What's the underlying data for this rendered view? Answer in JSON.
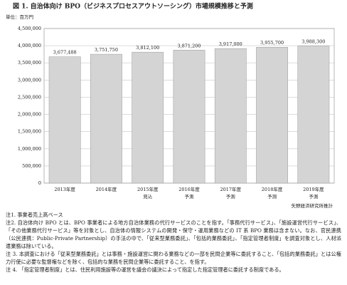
{
  "chart_data": {
    "type": "bar",
    "title": "図 1. 自治体向け BPO（ビジネスプロセスアウトソーシング）市場規模推移と予測",
    "unit_label": "単位：百万円",
    "categories": [
      "2013年度",
      "2014年度",
      "2015年度",
      "2016年度",
      "2017年度",
      "2018年度",
      "2019年度"
    ],
    "category_sublabels": [
      null,
      null,
      "見込",
      "予測",
      "予測",
      "予測",
      "予測"
    ],
    "values": [
      3677488,
      3751750,
      3812100,
      3871200,
      3917000,
      3955700,
      3988300
    ],
    "value_labels": [
      "3,677,488",
      "3,751,750",
      "3,812,100",
      "3,871,200",
      "3,917,000",
      "3,955,700",
      "3,988,300"
    ],
    "color": "#d4d4d4",
    "ylim": [
      0,
      4500000
    ],
    "yticks": [
      0,
      {
        "value": 500000,
        "label": "500,000"
      },
      {
        "value": 1000000,
        "label": "1,000,000"
      },
      {
        "value": 1500000,
        "label": "1,500,000"
      },
      {
        "value": 2000000,
        "label": "2,000,000"
      },
      {
        "value": 2500000,
        "label": "2,500,000"
      },
      {
        "value": 3000000,
        "label": "3,000,000"
      },
      {
        "value": 3500000,
        "label": "3,500,000"
      },
      {
        "value": 4000000,
        "label": "4,000,000"
      },
      {
        "value": 4500000,
        "label": "4,500,000"
      }
    ],
    "grid": true,
    "source": "矢野経済研究所推計"
  },
  "notes": [
    "注1. 事業者売上高ベース",
    "注2. 自治体向け BPO とは、BPO 事業者による地方自治体業務の代行サービスのことを指す。「事務代行サービス」、「施設運営代行サービス」、「その他業務代行サービス」等を対象とし、自治体の情報システムの開発・保守・運用業務などの IT 系 BPO 業務は含まない。なお、官民連携（公民連携：Public-Private Partnership）の手法の中で、「従来型業務委託」、「包括的業務委託」、「指定管理者制度」を調査対象とし、人材派遣業務は除いている。",
    "注 3. 本調査における「従来型業務委託」とは事務・施設運営に関わる業務などの一部を民間企業等に委託すること、「包括的業務委託」とは公権力行使に必要な監督権などを除く、包括的な業務を民間企業等に委託すること、を指す。",
    "注 4. 「指定管理者制度」とは、住民利用施設等の運営を議会の議決によって指定した指定管理者に委託する制度である。"
  ]
}
